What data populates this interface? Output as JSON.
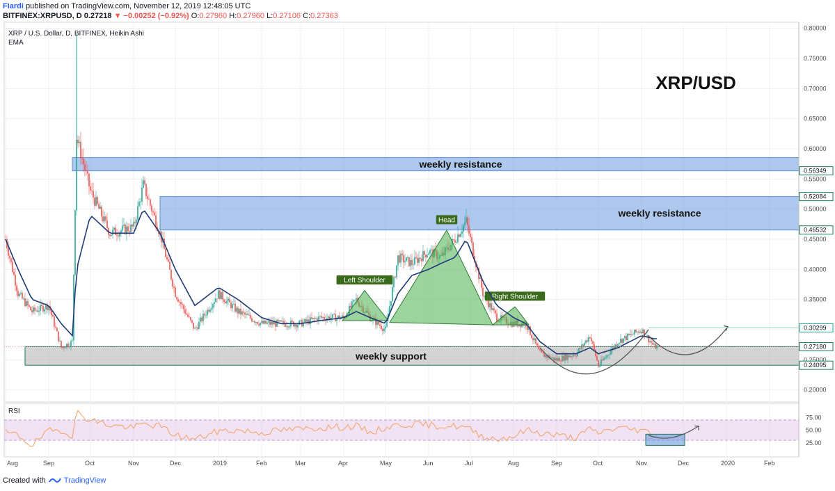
{
  "header": {
    "author": "Fiardi",
    "published": "published on TradingView.com, November 12, 2019 12:48:05 UTC",
    "symbol": "BITFINEX:XRPUSD, D",
    "last": "0.27218",
    "change_arrow": "▼",
    "change": "−0.00252 (−0.92%)",
    "o_label": "O:",
    "o": "0.27960",
    "h_label": "H:",
    "h": "0.27960",
    "l_label": "L:",
    "l": "0.27106",
    "c_label": "C:",
    "c": "0.27363"
  },
  "legend": {
    "title": "XRP / U.S. Dollar, D, BITFINEX, Heikin Ashi",
    "indicator": "EMA"
  },
  "footer": {
    "created_with": "Created with",
    "brand": "TradingView"
  },
  "colors": {
    "up": "#26a69a",
    "down": "#ef5350",
    "ema": "#1f3b73",
    "resistance": "#6b9be0",
    "support": "#b0b0b0",
    "pattern": "#4caf50",
    "rsi": "#f4a261"
  },
  "chart_data": {
    "type": "line",
    "title": "XRP/USD",
    "ylabel": "",
    "ylim": [
      0.18,
      0.81
    ],
    "x": [
      "2018-08-01",
      "2018-08-10",
      "2018-08-20",
      "2018-09-01",
      "2018-09-10",
      "2018-09-18",
      "2018-09-21",
      "2018-10-01",
      "2018-10-15",
      "2018-11-01",
      "2018-11-08",
      "2018-11-20",
      "2018-12-01",
      "2018-12-15",
      "2019-01-01",
      "2019-01-15",
      "2019-02-01",
      "2019-02-15",
      "2019-03-01",
      "2019-03-15",
      "2019-04-01",
      "2019-04-10",
      "2019-04-20",
      "2019-05-01",
      "2019-05-10",
      "2019-05-20",
      "2019-06-01",
      "2019-06-10",
      "2019-06-20",
      "2019-06-28",
      "2019-07-10",
      "2019-07-20",
      "2019-08-01",
      "2019-08-10",
      "2019-08-20",
      "2019-09-01",
      "2019-09-15",
      "2019-09-25",
      "2019-10-01",
      "2019-10-15",
      "2019-11-01",
      "2019-11-10"
    ],
    "series": [
      {
        "values": [
          0.45,
          0.36,
          0.33,
          0.34,
          0.27,
          0.28,
          0.62,
          0.53,
          0.46,
          0.47,
          0.54,
          0.46,
          0.36,
          0.3,
          0.36,
          0.33,
          0.31,
          0.31,
          0.31,
          0.32,
          0.32,
          0.35,
          0.32,
          0.3,
          0.42,
          0.41,
          0.43,
          0.42,
          0.45,
          0.48,
          0.36,
          0.32,
          0.31,
          0.31,
          0.26,
          0.25,
          0.26,
          0.29,
          0.24,
          0.28,
          0.3,
          0.272
        ]
      },
      {
        "values": [
          0.45,
          0.4,
          0.35,
          0.34,
          0.31,
          0.29,
          0.4,
          0.49,
          0.46,
          0.46,
          0.5,
          0.46,
          0.4,
          0.34,
          0.37,
          0.35,
          0.32,
          0.31,
          0.31,
          0.315,
          0.32,
          0.33,
          0.32,
          0.31,
          0.36,
          0.39,
          0.4,
          0.41,
          0.42,
          0.45,
          0.38,
          0.34,
          0.32,
          0.31,
          0.28,
          0.26,
          0.26,
          0.27,
          0.26,
          0.27,
          0.29,
          0.285
        ]
      }
    ],
    "x_ticks": [
      "Aug",
      "Sep",
      "Oct",
      "Nov",
      "Dec",
      "2019",
      "Feb",
      "Mar",
      "Apr",
      "May",
      "Jun",
      "Jul",
      "Aug",
      "Sep",
      "Oct",
      "Nov",
      "Dec",
      "2020",
      "Feb"
    ],
    "y_ticks": [
      "0.80000",
      "0.75000",
      "0.70000",
      "0.65000",
      "0.60000",
      "0.55000",
      "0.50000",
      "0.45000",
      "0.40000",
      "0.35000",
      "0.30000",
      "0.25000",
      "0.20000"
    ],
    "price_labels": [
      "0.56349",
      "0.52084",
      "0.46532",
      "0.30299",
      "0.27180",
      "0.24095"
    ],
    "zones": [
      {
        "label": "weekly resistance",
        "y0": 0.56349,
        "y1": 0.5855,
        "x0": "2018-09-18",
        "x1": "2020-02-10"
      },
      {
        "label": "weekly resistance",
        "y0": 0.46532,
        "y1": 0.52084,
        "x0": "2018-11-20",
        "x1": "2020-02-10"
      },
      {
        "label": "weekly support",
        "y0": 0.24095,
        "y1": 0.2718,
        "x0": "2018-08-15",
        "x1": "2020-02-10"
      }
    ],
    "pattern": {
      "left_shoulder": "Left Shoulder",
      "head": "Head",
      "right_shoulder": "Right Shoulder",
      "neckline": [
        0.315,
        0.31
      ]
    },
    "rsi": {
      "label": "RSI",
      "ylim": [
        0,
        100
      ],
      "ticks": [
        "75.00",
        "50.00",
        "25.00"
      ],
      "values": [
        45,
        40,
        20,
        48,
        50,
        40,
        85,
        70,
        60,
        55,
        62,
        58,
        40,
        32,
        48,
        50,
        45,
        50,
        52,
        55,
        56,
        58,
        45,
        55,
        60,
        62,
        60,
        58,
        58,
        55,
        38,
        32,
        38,
        50,
        45,
        40,
        35,
        52,
        45,
        55,
        50,
        42
      ]
    }
  }
}
